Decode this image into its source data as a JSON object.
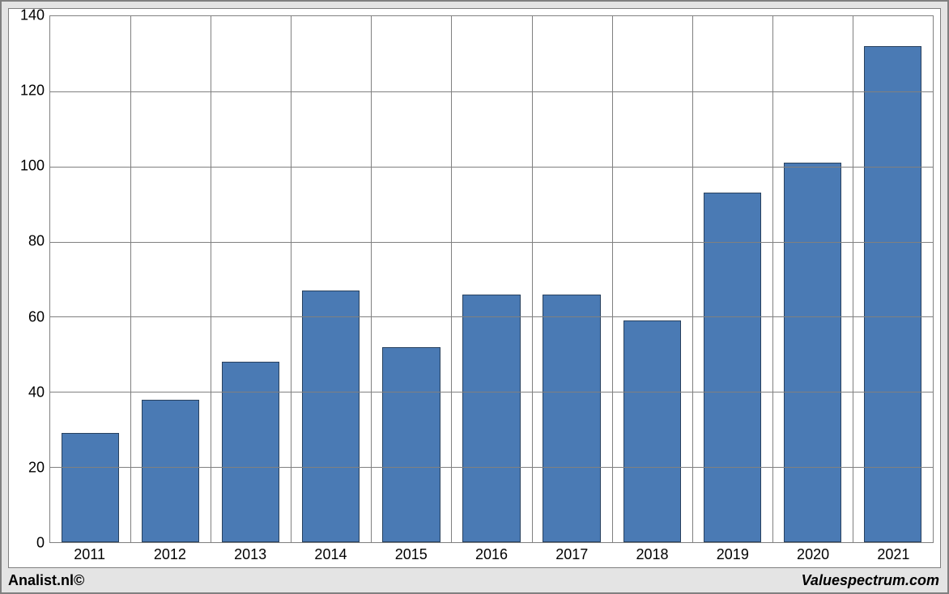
{
  "chart": {
    "type": "bar",
    "categories": [
      "2011",
      "2012",
      "2013",
      "2014",
      "2015",
      "2016",
      "2017",
      "2018",
      "2019",
      "2020",
      "2021"
    ],
    "values": [
      29,
      38,
      48,
      67,
      52,
      66,
      66,
      59,
      93,
      101,
      132
    ],
    "bar_color": "#4a7ab4",
    "bar_border_color": "#28415e",
    "background_color": "#ffffff",
    "plot_border_color": "#808080",
    "grid_color": "#808080",
    "frame_background": "#e4e4e4",
    "ylim": [
      0,
      140
    ],
    "ytick_step": 20,
    "yticks": [
      0,
      20,
      40,
      60,
      80,
      100,
      120,
      140
    ],
    "bar_width_ratio": 0.72,
    "label_fontsize": 18,
    "label_color": "#000000"
  },
  "footer": {
    "left": "Analist.nl©",
    "right": "Valuespectrum.com"
  }
}
